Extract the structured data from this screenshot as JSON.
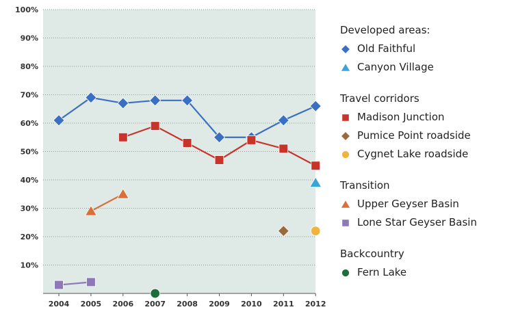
{
  "chart_data": {
    "type": "line",
    "categories": [
      "2004",
      "2005",
      "2006",
      "2007",
      "2008",
      "2009",
      "2010",
      "2011",
      "2012"
    ],
    "ylim": [
      0,
      100
    ],
    "y_ticks": [
      "10%",
      "20%",
      "30%",
      "40%",
      "50%",
      "60%",
      "70%",
      "80%",
      "90%",
      "100%"
    ],
    "grid": true,
    "legend_position": "right",
    "groups": [
      {
        "title": "Developed areas:",
        "series": [
          {
            "name": "Old Faithful",
            "marker": "diamond",
            "color": "#3a6fc4",
            "line": true,
            "points": [
              [
                "2004",
                61
              ],
              [
                "2005",
                69
              ],
              [
                "2006",
                67
              ],
              [
                "2007",
                68
              ],
              [
                "2008",
                68
              ],
              [
                "2009",
                55
              ],
              [
                "2010",
                55
              ],
              [
                "2011",
                61
              ],
              [
                "2012",
                66
              ]
            ]
          },
          {
            "name": "Canyon Village",
            "marker": "triangle",
            "color": "#3aa3d8",
            "line": false,
            "points": [
              [
                "2012",
                39
              ]
            ]
          }
        ]
      },
      {
        "title": "Travel corridors",
        "series": [
          {
            "name": "Madison Junction",
            "marker": "square",
            "color": "#c8332a",
            "line": true,
            "points": [
              [
                "2006",
                55
              ],
              [
                "2007",
                59
              ],
              [
                "2008",
                53
              ],
              [
                "2009",
                47
              ],
              [
                "2010",
                54
              ],
              [
                "2011",
                51
              ],
              [
                "2012",
                45
              ]
            ]
          },
          {
            "name": "Pumice Point roadside",
            "marker": "diamond",
            "color": "#9a6a3e",
            "line": false,
            "points": [
              [
                "2011",
                22
              ]
            ]
          },
          {
            "name": "Cygnet Lake roadside",
            "marker": "circle",
            "color": "#f0b340",
            "line": false,
            "points": [
              [
                "2012",
                22
              ]
            ]
          }
        ]
      },
      {
        "title": "Transition",
        "series": [
          {
            "name": "Upper Geyser Basin",
            "marker": "triangle",
            "color": "#d9703a",
            "line": true,
            "points": [
              [
                "2005",
                29
              ],
              [
                "2006",
                35
              ]
            ]
          },
          {
            "name": "Lone Star Geyser Basin",
            "marker": "square",
            "color": "#8d78b8",
            "line": true,
            "points": [
              [
                "2004",
                3
              ],
              [
                "2005",
                4
              ]
            ]
          }
        ]
      },
      {
        "title": "Backcountry",
        "series": [
          {
            "name": "Fern Lake",
            "marker": "circle",
            "color": "#1e6e3a",
            "line": false,
            "points": [
              [
                "2007",
                0
              ]
            ]
          }
        ]
      }
    ]
  }
}
